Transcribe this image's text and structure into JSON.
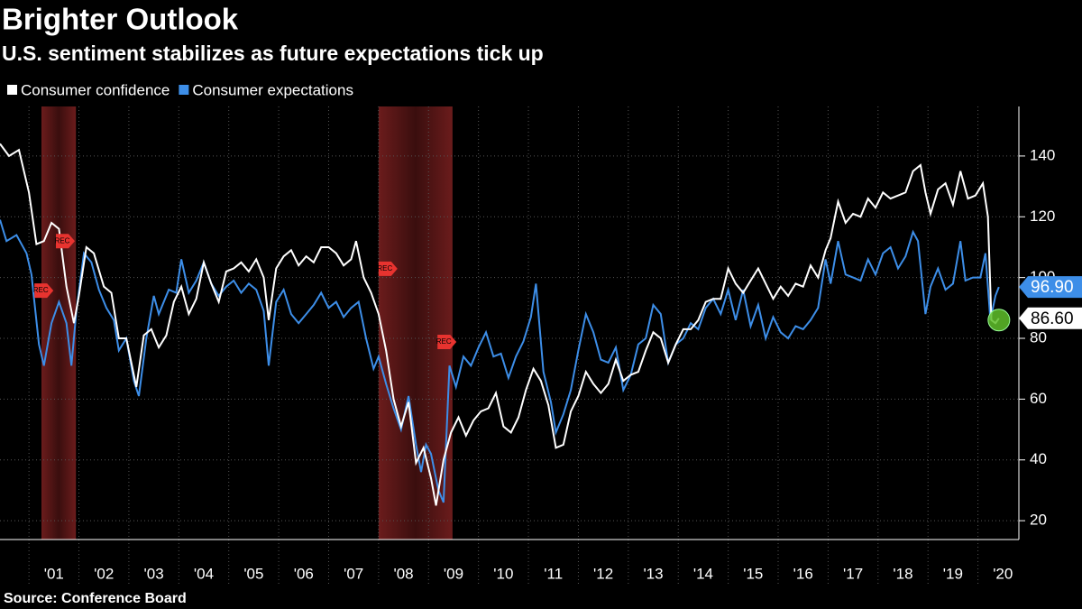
{
  "chart_data": {
    "type": "line",
    "title": "Brighter Outlook",
    "subtitle": "U.S. sentiment stabilizes as future expectations tick up",
    "source": "Source: Conference Board",
    "xlim": [
      2000.42,
      2020.82
    ],
    "ylim": [
      13.8,
      156.3
    ],
    "yticks": [
      20,
      40,
      60,
      80,
      100,
      120,
      140
    ],
    "xticks": [
      {
        "value": 2001,
        "label": "'01"
      },
      {
        "value": 2002,
        "label": "'02"
      },
      {
        "value": 2003,
        "label": "'03"
      },
      {
        "value": 2004,
        "label": "'04"
      },
      {
        "value": 2005,
        "label": "'05"
      },
      {
        "value": 2006,
        "label": "'06"
      },
      {
        "value": 2007,
        "label": "'07"
      },
      {
        "value": 2008,
        "label": "'08"
      },
      {
        "value": 2009,
        "label": "'09"
      },
      {
        "value": 2010,
        "label": "'10"
      },
      {
        "value": 2011,
        "label": "'11"
      },
      {
        "value": 2012,
        "label": "'12"
      },
      {
        "value": 2013,
        "label": "'13"
      },
      {
        "value": 2014,
        "label": "'14"
      },
      {
        "value": 2015,
        "label": "'15"
      },
      {
        "value": 2016,
        "label": "'16"
      },
      {
        "value": 2017,
        "label": "'17"
      },
      {
        "value": 2018,
        "label": "'18"
      },
      {
        "value": 2019,
        "label": "'19"
      },
      {
        "value": 2020,
        "label": "'20"
      }
    ],
    "grid": true,
    "recessions": [
      [
        2001.25,
        2001.94
      ],
      [
        2008.0,
        2009.48
      ]
    ],
    "annotations": [
      {
        "x": 2001.29,
        "y": 95.7,
        "text": "REC"
      },
      {
        "x": 2001.72,
        "y": 112,
        "text": "REC"
      },
      {
        "x": 2008.18,
        "y": 102.9,
        "text": "REC"
      },
      {
        "x": 2009.36,
        "y": 78.8,
        "text": "REC"
      }
    ],
    "series": [
      {
        "name": "Consumer confidence",
        "color": "#ffffff",
        "last_value": {
          "value": 86.6,
          "label": "86.60"
        },
        "x": [
          2000.42,
          2000.6,
          2000.8,
          2001.0,
          2001.15,
          2001.3,
          2001.45,
          2001.6,
          2001.75,
          2001.9,
          2002.0,
          2002.15,
          2002.3,
          2002.5,
          2002.65,
          2002.8,
          2002.95,
          2003.15,
          2003.3,
          2003.45,
          2003.6,
          2003.75,
          2003.9,
          2004.05,
          2004.2,
          2004.35,
          2004.5,
          2004.65,
          2004.8,
          2004.95,
          2005.1,
          2005.25,
          2005.4,
          2005.55,
          2005.7,
          2005.8,
          2005.95,
          2006.1,
          2006.25,
          2006.4,
          2006.55,
          2006.7,
          2006.85,
          2007.0,
          2007.15,
          2007.3,
          2007.45,
          2007.55,
          2007.7,
          2007.85,
          2008.0,
          2008.15,
          2008.3,
          2008.45,
          2008.6,
          2008.75,
          2008.9,
          2009.05,
          2009.15,
          2009.3,
          2009.45,
          2009.6,
          2009.75,
          2009.9,
          2010.05,
          2010.2,
          2010.35,
          2010.5,
          2010.65,
          2010.8,
          2010.95,
          2011.1,
          2011.25,
          2011.4,
          2011.55,
          2011.7,
          2011.85,
          2012.0,
          2012.15,
          2012.3,
          2012.45,
          2012.6,
          2012.75,
          2012.9,
          2013.05,
          2013.2,
          2013.35,
          2013.5,
          2013.65,
          2013.8,
          2013.95,
          2014.1,
          2014.25,
          2014.4,
          2014.55,
          2014.7,
          2014.85,
          2015.0,
          2015.15,
          2015.3,
          2015.45,
          2015.6,
          2015.75,
          2015.9,
          2016.05,
          2016.2,
          2016.35,
          2016.5,
          2016.65,
          2016.8,
          2016.95,
          2017.05,
          2017.2,
          2017.35,
          2017.5,
          2017.65,
          2017.8,
          2017.95,
          2018.1,
          2018.25,
          2018.4,
          2018.55,
          2018.7,
          2018.85,
          2018.95,
          2019.05,
          2019.2,
          2019.35,
          2019.5,
          2019.65,
          2019.8,
          2019.95,
          2020.1,
          2020.2,
          2020.27,
          2020.35,
          2020.42
        ],
        "values": [
          144,
          140,
          142,
          128,
          111,
          112,
          118,
          116,
          97,
          85,
          94,
          110,
          108,
          97,
          95,
          80,
          80,
          64,
          81,
          83,
          77,
          81,
          92,
          97,
          88,
          93,
          105,
          98,
          92,
          102,
          103,
          105,
          102,
          106,
          100,
          86,
          103,
          107,
          109,
          104,
          107,
          105,
          110,
          110,
          108,
          104,
          106,
          112,
          100,
          95,
          88,
          76,
          60,
          51,
          59,
          39,
          44,
          34,
          25,
          40,
          49,
          54,
          48,
          53,
          56,
          57,
          62,
          51,
          49,
          54,
          63,
          70,
          66,
          58,
          44,
          45,
          56,
          61,
          69,
          65,
          62,
          65,
          73,
          66,
          68,
          69,
          76,
          82,
          80,
          72,
          78,
          83,
          83,
          86,
          92,
          93,
          93,
          103,
          98,
          95,
          99,
          103,
          98,
          93,
          97,
          94,
          98,
          97,
          104,
          100,
          109,
          113,
          125,
          118,
          121,
          120,
          126,
          123,
          128,
          126,
          127,
          128,
          135,
          137,
          128,
          121,
          129,
          131,
          124,
          135,
          126,
          127,
          131,
          120,
          86,
          85,
          86.6
        ]
      },
      {
        "name": "Consumer expectations",
        "color": "#3d8ee8",
        "last_value": {
          "value": 96.9,
          "label": "96.90"
        },
        "x": [
          2000.42,
          2000.55,
          2000.75,
          2000.95,
          2001.05,
          2001.2,
          2001.3,
          2001.45,
          2001.6,
          2001.75,
          2001.85,
          2001.95,
          2002.1,
          2002.25,
          2002.4,
          2002.55,
          2002.7,
          2002.8,
          2002.95,
          2003.1,
          2003.2,
          2003.35,
          2003.5,
          2003.6,
          2003.8,
          2003.95,
          2004.05,
          2004.2,
          2004.35,
          2004.5,
          2004.65,
          2004.8,
          2004.95,
          2005.1,
          2005.25,
          2005.4,
          2005.55,
          2005.7,
          2005.8,
          2005.95,
          2006.1,
          2006.25,
          2006.4,
          2006.55,
          2006.7,
          2006.85,
          2007.0,
          2007.15,
          2007.3,
          2007.45,
          2007.6,
          2007.75,
          2007.9,
          2008.0,
          2008.15,
          2008.3,
          2008.45,
          2008.6,
          2008.75,
          2008.85,
          2008.95,
          2009.05,
          2009.2,
          2009.3,
          2009.42,
          2009.55,
          2009.7,
          2009.85,
          2010.0,
          2010.15,
          2010.3,
          2010.45,
          2010.6,
          2010.75,
          2010.9,
          2011.05,
          2011.15,
          2011.3,
          2011.45,
          2011.55,
          2011.7,
          2011.85,
          2012.0,
          2012.15,
          2012.3,
          2012.45,
          2012.6,
          2012.75,
          2012.9,
          2013.05,
          2013.2,
          2013.35,
          2013.5,
          2013.65,
          2013.8,
          2013.95,
          2014.1,
          2014.25,
          2014.4,
          2014.55,
          2014.7,
          2014.85,
          2015.0,
          2015.15,
          2015.3,
          2015.45,
          2015.6,
          2015.75,
          2015.9,
          2016.05,
          2016.2,
          2016.35,
          2016.5,
          2016.65,
          2016.8,
          2016.95,
          2017.05,
          2017.2,
          2017.35,
          2017.5,
          2017.65,
          2017.8,
          2017.95,
          2018.1,
          2018.25,
          2018.4,
          2018.55,
          2018.7,
          2018.8,
          2018.95,
          2019.05,
          2019.2,
          2019.35,
          2019.5,
          2019.65,
          2019.75,
          2019.9,
          2020.05,
          2020.15,
          2020.25,
          2020.35,
          2020.42
        ],
        "values": [
          119,
          112,
          114,
          108,
          101,
          78,
          71,
          85,
          92,
          85,
          71,
          89,
          108,
          105,
          96,
          90,
          86,
          76,
          80,
          66,
          61,
          80,
          94,
          88,
          96,
          95,
          106,
          95,
          99,
          105,
          98,
          94,
          97,
          99,
          95,
          98,
          96,
          89,
          71,
          92,
          96,
          88,
          85,
          88,
          91,
          95,
          90,
          92,
          87,
          90,
          92,
          80,
          70,
          74,
          65,
          57,
          50,
          61,
          45,
          36,
          45,
          42,
          30,
          26,
          71,
          64,
          74,
          71,
          77,
          82,
          74,
          75,
          67,
          74,
          79,
          87,
          98,
          69,
          59,
          49,
          55,
          63,
          76,
          88,
          82,
          73,
          72,
          77,
          63,
          68,
          78,
          80,
          91,
          88,
          72,
          78,
          80,
          85,
          83,
          90,
          93,
          88,
          96,
          86,
          96,
          84,
          91,
          80,
          87,
          82,
          80,
          84,
          83,
          86,
          90,
          106,
          98,
          112,
          101,
          100,
          99,
          106,
          101,
          108,
          110,
          103,
          107,
          115,
          112,
          88,
          97,
          103,
          96,
          98,
          112,
          99,
          100,
          100,
          108,
          86,
          94,
          96.9
        ]
      }
    ]
  }
}
